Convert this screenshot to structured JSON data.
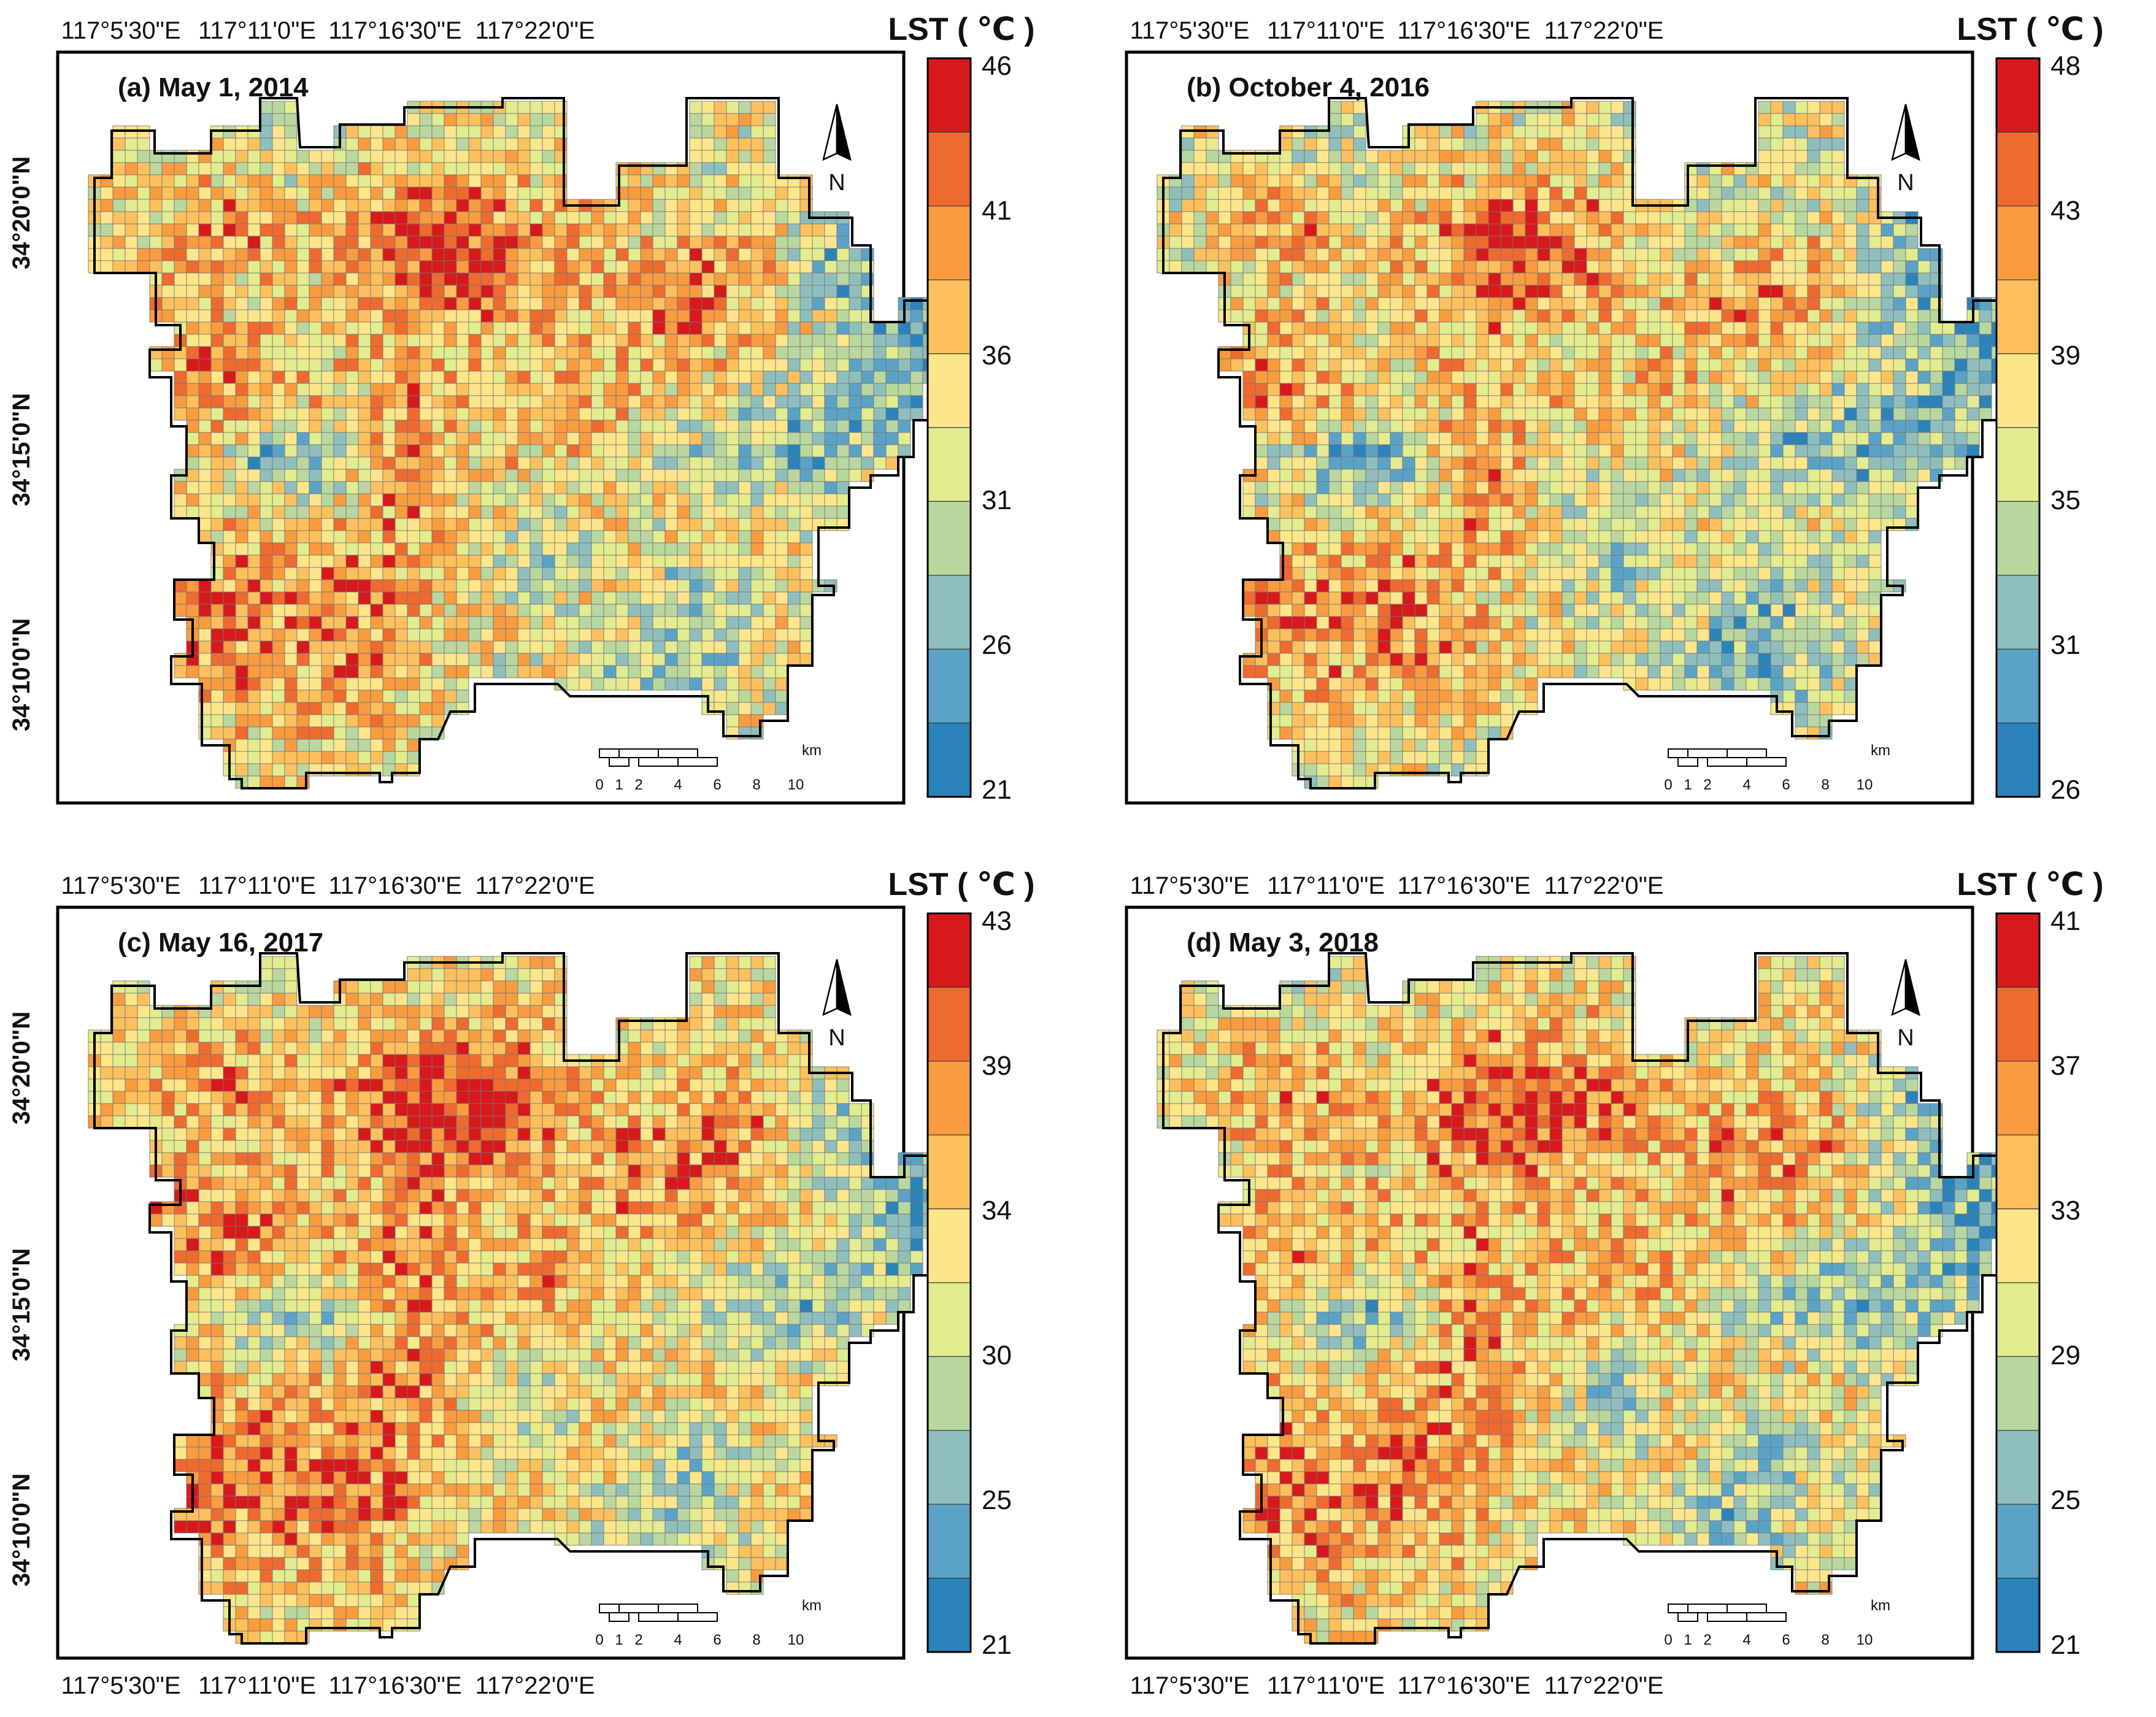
{
  "figure": {
    "top_lon_labels": [
      "117°5'30\"E",
      "117°11'0\"E",
      "117°16'30\"E",
      "117°22'0\"E"
    ],
    "bottom_lon_labels": [
      "117°5'30\"E",
      "117°11'0\"E",
      "117°16'30\"E",
      "117°22'0\"E"
    ],
    "lat_labels": [
      "34°20'0\"N",
      "34°15'0\"N",
      "34°10'0\"N"
    ],
    "north_label": "N",
    "scale_ticks": [
      "0",
      "1",
      "2",
      "4",
      "6",
      "8",
      "10"
    ],
    "scale_unit": "km",
    "legend_title": "LST ( ℃ )",
    "colors": {
      "ramp": [
        "#2b83ba",
        "#5aa3c7",
        "#8fbfbd",
        "#b9d79f",
        "#e3ec8f",
        "#fde68a",
        "#fdc05c",
        "#f99b3f",
        "#ef6a2e",
        "#d7191c"
      ],
      "frame": "#000000",
      "grid_stroke": "#777777"
    }
  },
  "panels": [
    {
      "label": "(a) May 1, 2014",
      "legend_ticks": [
        "46",
        "41",
        "36",
        "31",
        "26",
        "21"
      ]
    },
    {
      "label": "(b) October 4, 2016",
      "legend_ticks": [
        "48",
        "43",
        "39",
        "35",
        "31",
        "26"
      ]
    },
    {
      "label": "(c) May 16, 2017",
      "legend_ticks": [
        "43",
        "39",
        "34",
        "30",
        "25",
        "21"
      ]
    },
    {
      "label": "(d) May 3, 2018",
      "legend_ticks": [
        "41",
        "37",
        "33",
        "29",
        "25",
        "21"
      ]
    }
  ]
}
